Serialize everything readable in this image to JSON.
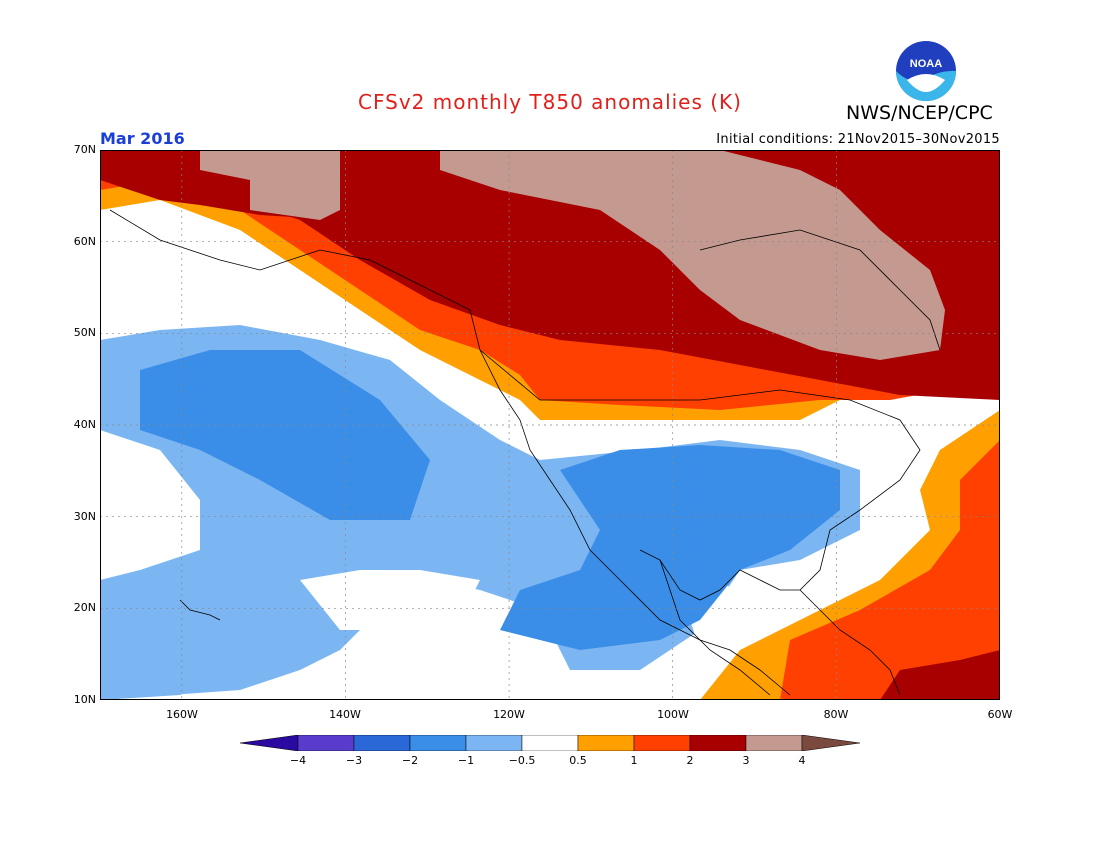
{
  "title": "CFSv2 monthly T850 anomalies (K)",
  "agency": "NWS/NCEP/CPC",
  "logo_text": "NOAA",
  "valid_month": "Mar 2016",
  "initial_conditions": "Initial conditions: 21Nov2015–30Nov2015",
  "map": {
    "lat_labels": [
      "70N",
      "60N",
      "50N",
      "40N",
      "30N",
      "20N",
      "10N"
    ],
    "lon_labels": [
      "160W",
      "140W",
      "120W",
      "100W",
      "80W",
      "60W"
    ]
  },
  "colorbar": {
    "labels": [
      "−4",
      "−3",
      "−2",
      "−1",
      "−0.5",
      "0.5",
      "1",
      "2",
      "3",
      "4"
    ],
    "colors": [
      "#2a0aa0",
      "#5a3ccc",
      "#2a68d8",
      "#3a8ee8",
      "#7cb6f2",
      "#ffffff",
      "#ffa000",
      "#ff4000",
      "#a80000",
      "#c49a90",
      "#7a4a3e"
    ]
  }
}
